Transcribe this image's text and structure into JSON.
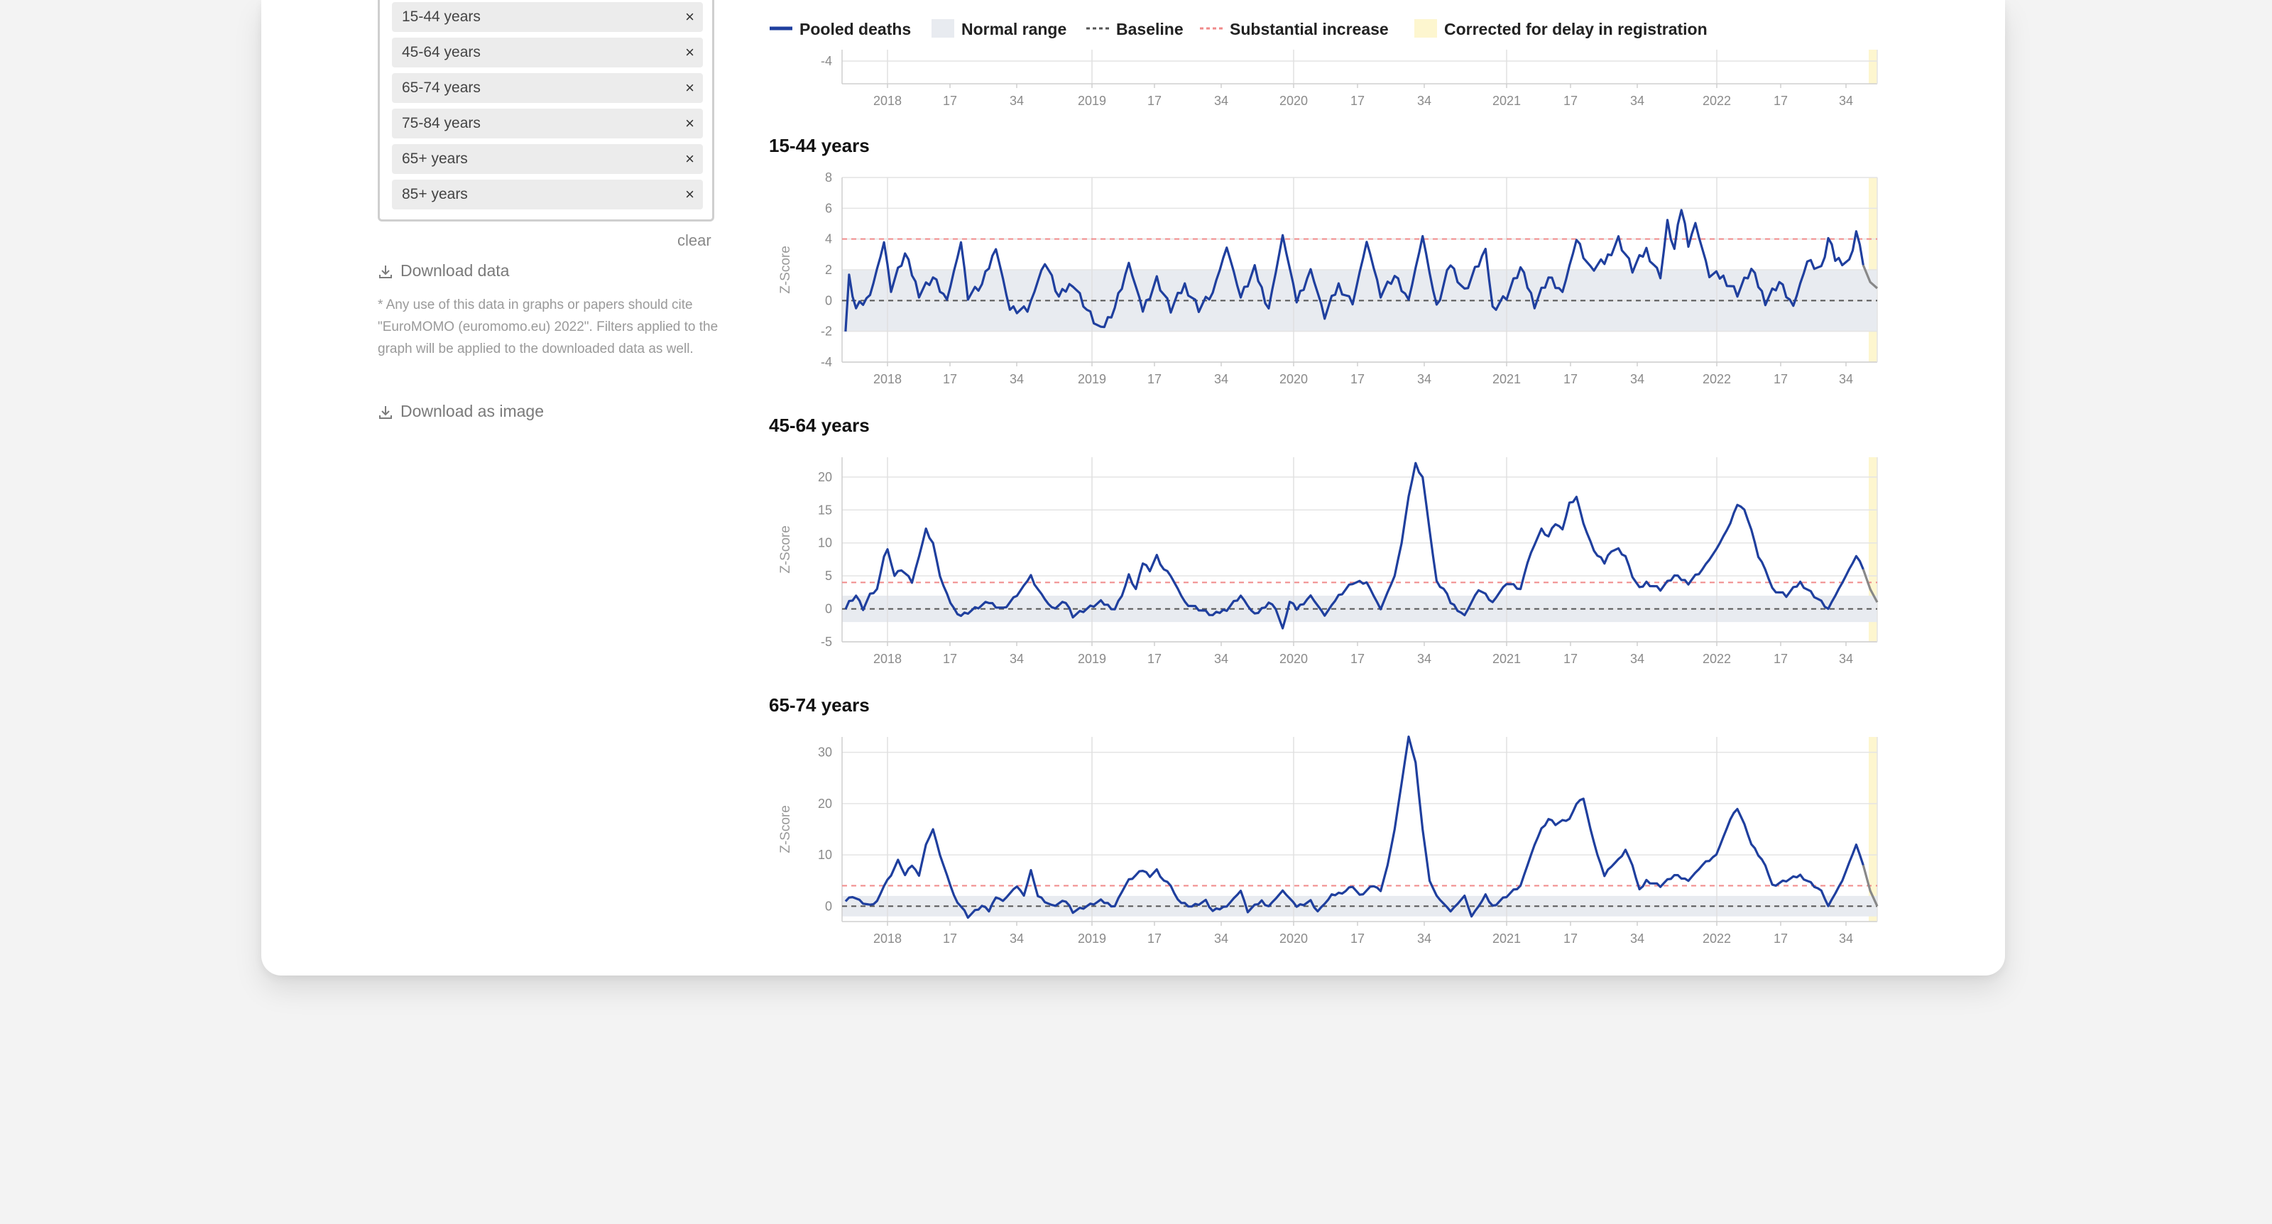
{
  "filters": {
    "tags": [
      "15-44 years",
      "45-64 years",
      "65-74 years",
      "75-84 years",
      "65+ years",
      "85+ years"
    ],
    "remove_symbol": "×",
    "clear_label": "clear"
  },
  "downloads": {
    "data_label": "Download data",
    "note": "* Any use of this data in graphs or papers should cite \"EuroMOMO (euromomo.eu) 2022\". Filters applied to the graph will be applied to the downloaded data as well.",
    "image_label": "Download as image"
  },
  "legend": {
    "pooled_deaths": "Pooled deaths",
    "normal_range": "Normal range",
    "baseline": "Baseline",
    "substantial_increase": "Substantial increase",
    "corrected_delay": "Corrected for delay in registration"
  },
  "colors": {
    "series": "#1f3f9e",
    "normal_range": "#e8ebf0",
    "baseline": "#555555",
    "substantial_increase": "#f08a8a",
    "corrected_delay": "#fdf6cf",
    "delay_series": "#888888"
  },
  "x_tick_labels": [
    "2018",
    "17",
    "34",
    "2019",
    "17",
    "34",
    "2020",
    "17",
    "34",
    "2021",
    "17",
    "34",
    "2022",
    "17",
    "34"
  ],
  "chart_data": [
    {
      "type": "line",
      "title": "",
      "ylabel": "",
      "ylim": [
        -5,
        -3.5
      ],
      "yticks": [
        -4
      ],
      "x_ticks": [
        "2018",
        "17",
        "34",
        "2019",
        "17",
        "34",
        "2020",
        "17",
        "34",
        "2021",
        "17",
        "34",
        "2022",
        "17",
        "34"
      ],
      "series": [],
      "partial": true
    },
    {
      "type": "line",
      "title": "15-44 years",
      "ylabel": "Z-Score",
      "ylim": [
        -4,
        8
      ],
      "yticks": [
        -4,
        -2,
        0,
        2,
        4,
        6,
        8
      ],
      "normal_range": [
        -2,
        2
      ],
      "baseline": 0,
      "substantial_increase": 4,
      "x_ticks": [
        "2018",
        "17",
        "34",
        "2019",
        "17",
        "34",
        "2020",
        "17",
        "34",
        "2021",
        "17",
        "34",
        "2022",
        "17",
        "34"
      ],
      "keypoints_week_z": [
        [
          1,
          -2
        ],
        [
          2,
          1.5
        ],
        [
          4,
          -0.5
        ],
        [
          8,
          0.3
        ],
        [
          12,
          3.8
        ],
        [
          14,
          0.8
        ],
        [
          18,
          3
        ],
        [
          22,
          0.5
        ],
        [
          26,
          1.5
        ],
        [
          30,
          0
        ],
        [
          34,
          3.8
        ],
        [
          36,
          0.3
        ],
        [
          40,
          1
        ],
        [
          44,
          3.4
        ],
        [
          48,
          -0.6
        ],
        [
          53,
          -0.7
        ],
        [
          58,
          2.6
        ],
        [
          62,
          0.2
        ],
        [
          66,
          1.2
        ],
        [
          70,
          -0.6
        ],
        [
          74,
          -2
        ],
        [
          78,
          -0.4
        ],
        [
          82,
          2.4
        ],
        [
          86,
          -0.6
        ],
        [
          90,
          1.4
        ],
        [
          94,
          -0.6
        ],
        [
          98,
          1
        ],
        [
          102,
          -0.5
        ],
        [
          106,
          0.5
        ],
        [
          110,
          3.5
        ],
        [
          114,
          0.2
        ],
        [
          118,
          2
        ],
        [
          122,
          -0.5
        ],
        [
          126,
          4.2
        ],
        [
          130,
          0
        ],
        [
          134,
          2
        ],
        [
          138,
          -1
        ],
        [
          142,
          1
        ],
        [
          146,
          -0.2
        ],
        [
          150,
          3.8
        ],
        [
          154,
          0.5
        ],
        [
          158,
          1.6
        ],
        [
          162,
          0
        ],
        [
          166,
          4.2
        ],
        [
          170,
          -0.5
        ],
        [
          174,
          2.4
        ],
        [
          178,
          0.6
        ],
        [
          184,
          3.3
        ],
        [
          186,
          -0.5
        ],
        [
          190,
          0.3
        ],
        [
          194,
          2.1
        ],
        [
          198,
          -0.2
        ],
        [
          202,
          1.5
        ],
        [
          206,
          0.5
        ],
        [
          210,
          4
        ],
        [
          214,
          2
        ],
        [
          218,
          2.5
        ],
        [
          222,
          4
        ],
        [
          226,
          2
        ],
        [
          230,
          3.3
        ],
        [
          234,
          1.5
        ],
        [
          236,
          5
        ],
        [
          238,
          3.3
        ],
        [
          240,
          6
        ],
        [
          242,
          3.8
        ],
        [
          244,
          5
        ],
        [
          248,
          1.7
        ],
        [
          252,
          1.5
        ],
        [
          256,
          0.5
        ],
        [
          260,
          2
        ],
        [
          264,
          0
        ],
        [
          268,
          1.2
        ],
        [
          272,
          -0.4
        ],
        [
          276,
          2.6
        ],
        [
          280,
          2
        ],
        [
          282,
          4
        ],
        [
          284,
          2.7
        ],
        [
          288,
          2.5
        ],
        [
          290,
          4.5
        ],
        [
          292,
          2.3
        ]
      ],
      "provisional_keypoints_week_z": [
        [
          292,
          2.3
        ],
        [
          294,
          1.2
        ],
        [
          296,
          0.8
        ]
      ]
    },
    {
      "type": "line",
      "title": "45-64 years",
      "ylabel": "Z-Score",
      "ylim": [
        -5,
        23
      ],
      "yticks": [
        -5,
        0,
        5,
        10,
        15,
        20
      ],
      "normal_range": [
        -2,
        2
      ],
      "baseline": 0,
      "substantial_increase": 4,
      "x_ticks": [
        "2018",
        "17",
        "34",
        "2019",
        "17",
        "34",
        "2020",
        "17",
        "34",
        "2021",
        "17",
        "34",
        "2022",
        "17",
        "34"
      ],
      "keypoints_week_z": [
        [
          1,
          0
        ],
        [
          2,
          1
        ],
        [
          4,
          2
        ],
        [
          6,
          0
        ],
        [
          8,
          2
        ],
        [
          10,
          3
        ],
        [
          12,
          8
        ],
        [
          13,
          9
        ],
        [
          15,
          5
        ],
        [
          17,
          6
        ],
        [
          20,
          4
        ],
        [
          22,
          8
        ],
        [
          24,
          12
        ],
        [
          26,
          10
        ],
        [
          28,
          5
        ],
        [
          30,
          2
        ],
        [
          32,
          0
        ],
        [
          34,
          -1
        ],
        [
          38,
          0
        ],
        [
          42,
          1
        ],
        [
          46,
          0
        ],
        [
          50,
          2
        ],
        [
          54,
          5
        ],
        [
          56,
          3
        ],
        [
          60,
          0
        ],
        [
          64,
          1
        ],
        [
          66,
          -1
        ],
        [
          70,
          0
        ],
        [
          74,
          1
        ],
        [
          78,
          0
        ],
        [
          80,
          2
        ],
        [
          82,
          5
        ],
        [
          84,
          3
        ],
        [
          86,
          7
        ],
        [
          88,
          6
        ],
        [
          90,
          8
        ],
        [
          92,
          6
        ],
        [
          94,
          5
        ],
        [
          98,
          1
        ],
        [
          102,
          0
        ],
        [
          106,
          -1
        ],
        [
          110,
          0
        ],
        [
          114,
          2
        ],
        [
          118,
          -1
        ],
        [
          122,
          1
        ],
        [
          124,
          0
        ],
        [
          126,
          -3
        ],
        [
          128,
          1
        ],
        [
          130,
          0
        ],
        [
          134,
          2
        ],
        [
          138,
          -1
        ],
        [
          142,
          2
        ],
        [
          146,
          4
        ],
        [
          150,
          4
        ],
        [
          154,
          0
        ],
        [
          158,
          5
        ],
        [
          160,
          10
        ],
        [
          162,
          17
        ],
        [
          164,
          22
        ],
        [
          166,
          20
        ],
        [
          168,
          12
        ],
        [
          170,
          4
        ],
        [
          172,
          3
        ],
        [
          174,
          1
        ],
        [
          178,
          -1
        ],
        [
          182,
          3
        ],
        [
          186,
          1
        ],
        [
          190,
          4
        ],
        [
          194,
          3
        ],
        [
          196,
          7
        ],
        [
          198,
          10
        ],
        [
          200,
          12
        ],
        [
          202,
          11
        ],
        [
          204,
          13
        ],
        [
          206,
          12
        ],
        [
          208,
          16
        ],
        [
          210,
          17
        ],
        [
          212,
          13
        ],
        [
          214,
          10
        ],
        [
          216,
          8
        ],
        [
          218,
          7
        ],
        [
          220,
          9
        ],
        [
          222,
          9
        ],
        [
          224,
          8
        ],
        [
          226,
          5
        ],
        [
          228,
          3
        ],
        [
          230,
          4
        ],
        [
          234,
          3
        ],
        [
          238,
          5
        ],
        [
          242,
          4
        ],
        [
          246,
          6
        ],
        [
          250,
          9
        ],
        [
          254,
          13
        ],
        [
          256,
          16
        ],
        [
          258,
          15
        ],
        [
          260,
          12
        ],
        [
          262,
          8
        ],
        [
          264,
          6
        ],
        [
          266,
          3
        ],
        [
          270,
          2
        ],
        [
          274,
          4
        ],
        [
          278,
          2
        ],
        [
          282,
          0
        ],
        [
          286,
          4
        ],
        [
          290,
          8
        ],
        [
          292,
          6
        ]
      ],
      "provisional_keypoints_week_z": [
        [
          292,
          6
        ],
        [
          294,
          3
        ],
        [
          296,
          1
        ]
      ]
    },
    {
      "type": "line",
      "title": "65-74 years",
      "ylabel": "Z-Score",
      "ylim": [
        -3,
        33
      ],
      "yticks": [
        0,
        10,
        20,
        30
      ],
      "normal_range": [
        -2,
        2
      ],
      "baseline": 0,
      "substantial_increase": 4,
      "x_ticks": [
        "2018",
        "17",
        "34",
        "2019",
        "17",
        "34",
        "2020",
        "17",
        "34",
        "2021",
        "17",
        "34",
        "2022",
        "17",
        "34"
      ],
      "keypoints_week_z": [
        [
          1,
          1
        ],
        [
          3,
          2
        ],
        [
          5,
          1
        ],
        [
          8,
          0
        ],
        [
          10,
          1
        ],
        [
          12,
          4
        ],
        [
          14,
          6
        ],
        [
          16,
          9
        ],
        [
          18,
          6
        ],
        [
          20,
          8
        ],
        [
          22,
          6
        ],
        [
          24,
          12
        ],
        [
          26,
          15
        ],
        [
          28,
          10
        ],
        [
          30,
          6
        ],
        [
          32,
          2
        ],
        [
          34,
          0
        ],
        [
          36,
          -2
        ],
        [
          38,
          -1
        ],
        [
          40,
          0
        ],
        [
          42,
          -1
        ],
        [
          44,
          2
        ],
        [
          46,
          1
        ],
        [
          50,
          4
        ],
        [
          52,
          2
        ],
        [
          54,
          7
        ],
        [
          56,
          2
        ],
        [
          60,
          0
        ],
        [
          64,
          1
        ],
        [
          66,
          -1
        ],
        [
          70,
          0
        ],
        [
          74,
          1
        ],
        [
          78,
          0
        ],
        [
          80,
          3
        ],
        [
          82,
          5
        ],
        [
          84,
          6
        ],
        [
          86,
          7
        ],
        [
          88,
          6
        ],
        [
          90,
          7
        ],
        [
          92,
          5
        ],
        [
          94,
          4
        ],
        [
          96,
          1
        ],
        [
          100,
          0
        ],
        [
          104,
          1
        ],
        [
          106,
          -1
        ],
        [
          110,
          0
        ],
        [
          114,
          3
        ],
        [
          116,
          -1
        ],
        [
          120,
          1
        ],
        [
          122,
          0
        ],
        [
          126,
          3
        ],
        [
          130,
          0
        ],
        [
          134,
          1
        ],
        [
          136,
          -1
        ],
        [
          140,
          2
        ],
        [
          144,
          3
        ],
        [
          146,
          4
        ],
        [
          148,
          2
        ],
        [
          152,
          4
        ],
        [
          154,
          3
        ],
        [
          156,
          8
        ],
        [
          158,
          15
        ],
        [
          160,
          24
        ],
        [
          162,
          33
        ],
        [
          164,
          28
        ],
        [
          166,
          15
        ],
        [
          168,
          5
        ],
        [
          170,
          2
        ],
        [
          174,
          -1
        ],
        [
          178,
          2
        ],
        [
          180,
          -2
        ],
        [
          184,
          2
        ],
        [
          186,
          0
        ],
        [
          190,
          2
        ],
        [
          194,
          4
        ],
        [
          196,
          8
        ],
        [
          198,
          12
        ],
        [
          200,
          15
        ],
        [
          202,
          17
        ],
        [
          204,
          16
        ],
        [
          208,
          17
        ],
        [
          210,
          20
        ],
        [
          212,
          21
        ],
        [
          214,
          15
        ],
        [
          216,
          10
        ],
        [
          218,
          6
        ],
        [
          220,
          8
        ],
        [
          222,
          9
        ],
        [
          224,
          11
        ],
        [
          226,
          8
        ],
        [
          228,
          3
        ],
        [
          230,
          5
        ],
        [
          234,
          4
        ],
        [
          238,
          6
        ],
        [
          242,
          5
        ],
        [
          246,
          8
        ],
        [
          250,
          10
        ],
        [
          254,
          17
        ],
        [
          256,
          19
        ],
        [
          258,
          16
        ],
        [
          260,
          12
        ],
        [
          262,
          10
        ],
        [
          264,
          8
        ],
        [
          266,
          4
        ],
        [
          270,
          5
        ],
        [
          274,
          6
        ],
        [
          278,
          4
        ],
        [
          280,
          3
        ],
        [
          282,
          0
        ],
        [
          286,
          5
        ],
        [
          290,
          12
        ],
        [
          292,
          8
        ]
      ],
      "provisional_keypoints_week_z": [
        [
          292,
          8
        ],
        [
          294,
          3
        ],
        [
          296,
          0
        ]
      ]
    }
  ]
}
